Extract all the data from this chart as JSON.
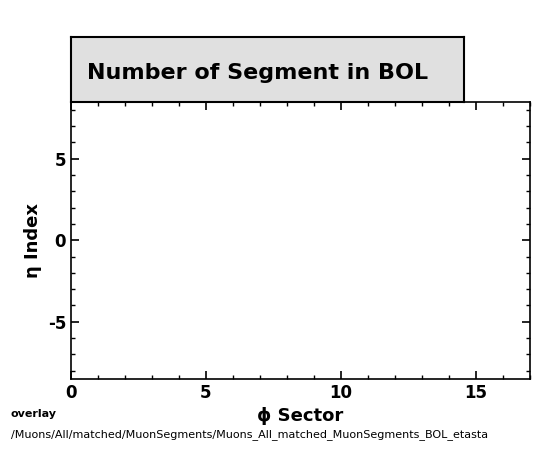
{
  "title": "Number of Segment in BOL",
  "xlabel": "ϕ Sector",
  "ylabel": "η Index",
  "xlim": [
    0,
    17
  ],
  "ylim": [
    -8.5,
    8.5
  ],
  "xticks": [
    0,
    5,
    10,
    15
  ],
  "yticks": [
    -5,
    0,
    5
  ],
  "footnote_line1": "overlay",
  "footnote_line2": "/Muons/All/matched/MuonSegments/Muons_All_matched_MuonSegments_BOL_etasta",
  "background_color": "#ffffff",
  "title_fontsize": 16,
  "axis_label_fontsize": 13,
  "tick_fontsize": 12,
  "footnote_fontsize": 8,
  "title_bg_color": "#dddddd"
}
